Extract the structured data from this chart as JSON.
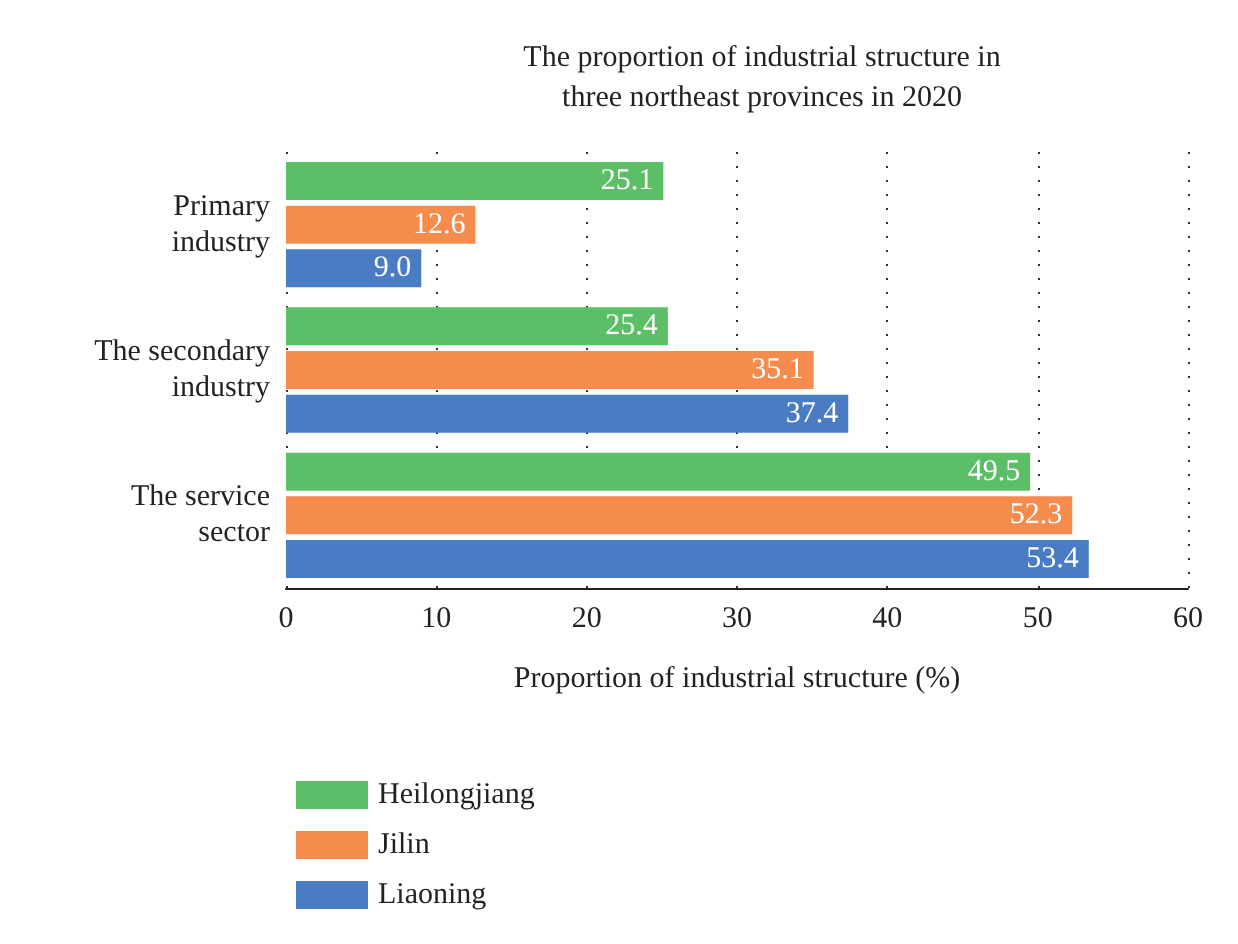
{
  "chart_data": {
    "type": "bar",
    "orientation": "horizontal",
    "title": "The proportion of industrial structure in\nthree northeast provinces in 2020",
    "xlabel": "Proportion of industrial structure (%)",
    "categories": [
      "Primary\nindustry",
      "The secondary\nindustry",
      "The service\nsector"
    ],
    "series": [
      {
        "name": "Heilongjiang",
        "color": "#5cbf68",
        "values": [
          25.1,
          25.4,
          49.5
        ],
        "value_labels": [
          "25.1",
          "25.4",
          "49.5"
        ]
      },
      {
        "name": "Jilin",
        "color": "#f68b4e",
        "values": [
          12.6,
          35.1,
          52.3
        ],
        "value_labels": [
          "12.6",
          "35.1",
          "52.3"
        ]
      },
      {
        "name": "Liaoning",
        "color": "#4a7cc4",
        "values": [
          9.0,
          37.4,
          53.4
        ],
        "value_labels": [
          "9.0",
          "37.4",
          "53.4"
        ]
      }
    ],
    "xlim": [
      0,
      60
    ],
    "xticks": [
      0,
      10,
      20,
      30,
      40,
      50,
      60
    ],
    "grid": "x",
    "legend": "bottom left"
  }
}
